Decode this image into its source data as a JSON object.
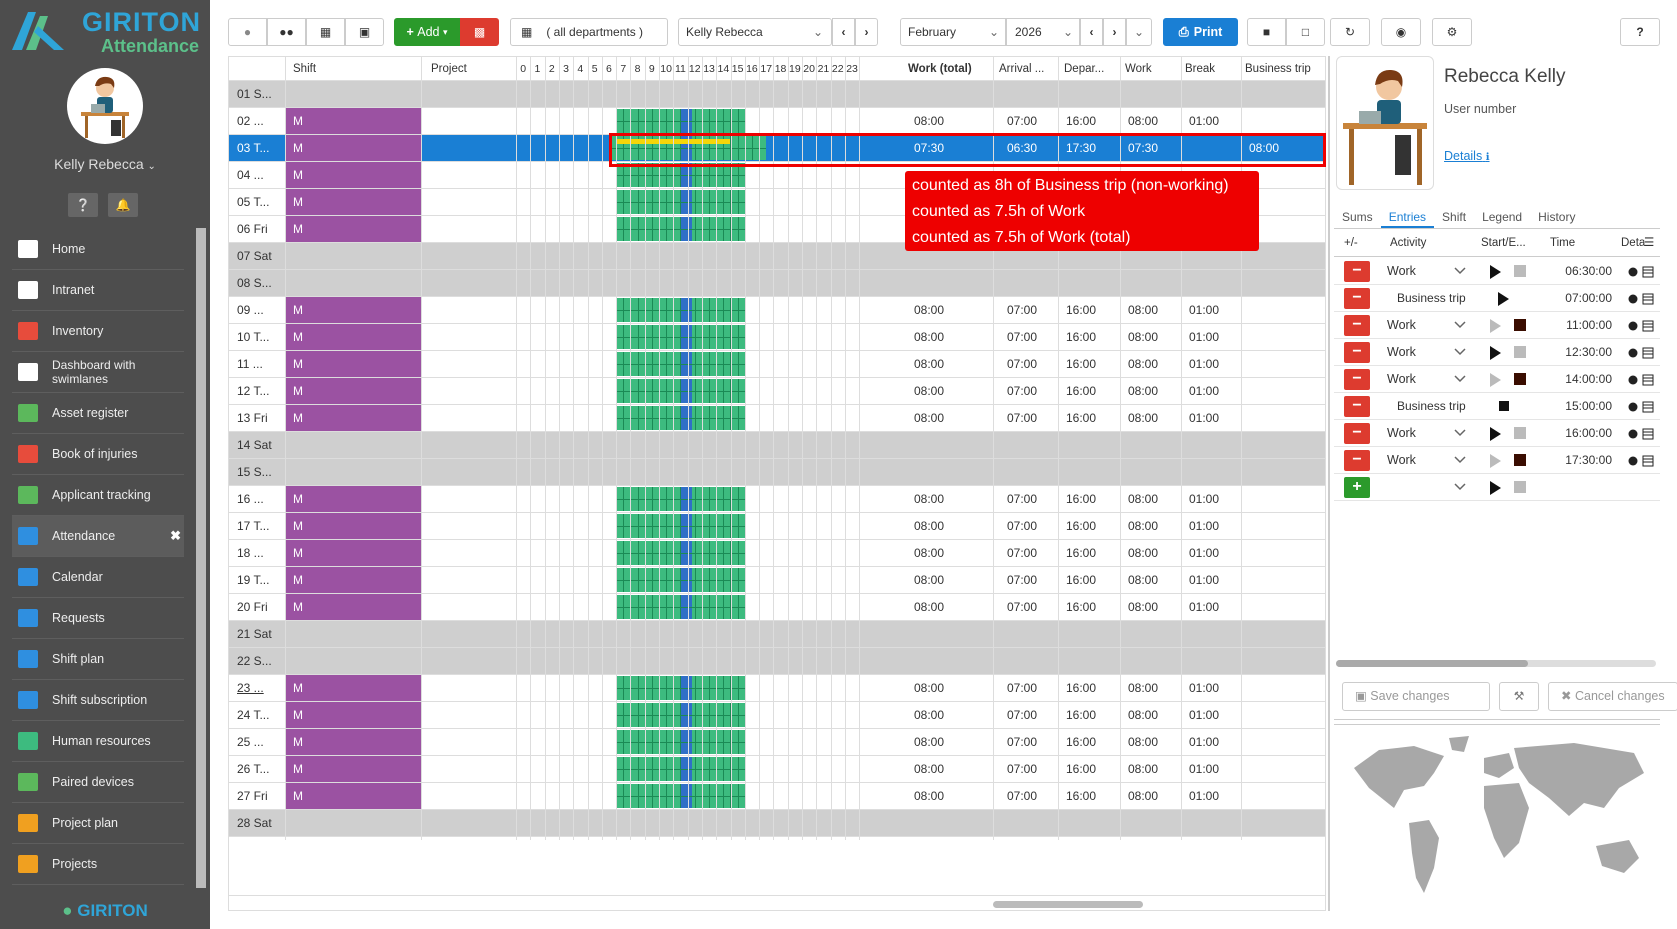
{
  "app": {
    "brand": "GIRITON",
    "product": "Attendance",
    "footer_brand": "GIRITON"
  },
  "user": {
    "name": "Kelly Rebecca"
  },
  "nav": [
    {
      "label": "Home",
      "icon": "home-icon"
    },
    {
      "label": "Intranet",
      "icon": "bank-icon"
    },
    {
      "label": "Inventory",
      "icon": "circle-icon"
    },
    {
      "label": "Dashboard with swimlanes",
      "icon": "swimlanes-icon"
    },
    {
      "label": "Asset register",
      "icon": "asset-icon"
    },
    {
      "label": "Book of injuries",
      "icon": "ambulance-icon"
    },
    {
      "label": "Applicant tracking",
      "icon": "user-plus-icon"
    },
    {
      "label": "Attendance",
      "icon": "user-icon",
      "active": true
    },
    {
      "label": "Calendar",
      "icon": "calendar-icon"
    },
    {
      "label": "Requests",
      "icon": "gavel-icon"
    },
    {
      "label": "Shift plan",
      "icon": "calendar-grid-icon"
    },
    {
      "label": "Shift subscription",
      "icon": "calendar-check-icon"
    },
    {
      "label": "Human resources",
      "icon": "person-icon"
    },
    {
      "label": "Paired devices",
      "icon": "mobile-icon"
    },
    {
      "label": "Project plan",
      "icon": "calendar-orange-icon"
    },
    {
      "label": "Projects",
      "icon": "calendar-orange-icon"
    }
  ],
  "toolbar": {
    "add_label": "Add",
    "department": "( all departments )",
    "employee": "Kelly Rebecca",
    "month": "February",
    "year": "2026",
    "print_label": "Print"
  },
  "grid": {
    "headers": {
      "shift": "Shift",
      "project": "Project",
      "work_total": "Work (total)",
      "arrival": "Arrival ...",
      "departure": "Depar...",
      "work": "Work",
      "break": "Break",
      "business_trip": "Business trip"
    },
    "hours": [
      "0",
      "1",
      "2",
      "3",
      "4",
      "5",
      "6",
      "7",
      "8",
      "9",
      "10",
      "11",
      "12",
      "13",
      "14",
      "15",
      "16",
      "17",
      "18",
      "19",
      "20",
      "21",
      "22",
      "23"
    ],
    "rows": [
      {
        "day": "01 S...",
        "weekend": true
      },
      {
        "day": "02 ...",
        "shift": "M",
        "work_total": "08:00",
        "arrival": "07:00",
        "departure": "16:00",
        "work": "08:00",
        "break": "01:00"
      },
      {
        "day": "03 T...",
        "shift": "M",
        "selected": true,
        "work_total": "07:30",
        "arrival": "06:30",
        "departure": "17:30",
        "work": "07:30",
        "business_trip": "08:00"
      },
      {
        "day": "04 ...",
        "shift": "M"
      },
      {
        "day": "05 T...",
        "shift": "M"
      },
      {
        "day": "06 Fri",
        "shift": "M"
      },
      {
        "day": "07 Sat",
        "weekend": true
      },
      {
        "day": "08 S...",
        "weekend": true
      },
      {
        "day": "09 ...",
        "shift": "M",
        "work_total": "08:00",
        "arrival": "07:00",
        "departure": "16:00",
        "work": "08:00",
        "break": "01:00"
      },
      {
        "day": "10 T...",
        "shift": "M",
        "work_total": "08:00",
        "arrival": "07:00",
        "departure": "16:00",
        "work": "08:00",
        "break": "01:00"
      },
      {
        "day": "11 ...",
        "shift": "M",
        "work_total": "08:00",
        "arrival": "07:00",
        "departure": "16:00",
        "work": "08:00",
        "break": "01:00"
      },
      {
        "day": "12 T...",
        "shift": "M",
        "work_total": "08:00",
        "arrival": "07:00",
        "departure": "16:00",
        "work": "08:00",
        "break": "01:00"
      },
      {
        "day": "13 Fri",
        "shift": "M",
        "work_total": "08:00",
        "arrival": "07:00",
        "departure": "16:00",
        "work": "08:00",
        "break": "01:00"
      },
      {
        "day": "14 Sat",
        "weekend": true
      },
      {
        "day": "15 S...",
        "weekend": true
      },
      {
        "day": "16 ...",
        "shift": "M",
        "work_total": "08:00",
        "arrival": "07:00",
        "departure": "16:00",
        "work": "08:00",
        "break": "01:00"
      },
      {
        "day": "17 T...",
        "shift": "M",
        "work_total": "08:00",
        "arrival": "07:00",
        "departure": "16:00",
        "work": "08:00",
        "break": "01:00"
      },
      {
        "day": "18 ...",
        "shift": "M",
        "work_total": "08:00",
        "arrival": "07:00",
        "departure": "16:00",
        "work": "08:00",
        "break": "01:00"
      },
      {
        "day": "19 T...",
        "shift": "M",
        "work_total": "08:00",
        "arrival": "07:00",
        "departure": "16:00",
        "work": "08:00",
        "break": "01:00"
      },
      {
        "day": "20 Fri",
        "shift": "M",
        "work_total": "08:00",
        "arrival": "07:00",
        "departure": "16:00",
        "work": "08:00",
        "break": "01:00"
      },
      {
        "day": "21 Sat",
        "weekend": true
      },
      {
        "day": "22 S...",
        "weekend": true
      },
      {
        "day": "23 ...",
        "shift": "M",
        "underline": true,
        "work_total": "08:00",
        "arrival": "07:00",
        "departure": "16:00",
        "work": "08:00",
        "break": "01:00"
      },
      {
        "day": "24 T...",
        "shift": "M",
        "work_total": "08:00",
        "arrival": "07:00",
        "departure": "16:00",
        "work": "08:00",
        "break": "01:00"
      },
      {
        "day": "25 ...",
        "shift": "M",
        "work_total": "08:00",
        "arrival": "07:00",
        "departure": "16:00",
        "work": "08:00",
        "break": "01:00"
      },
      {
        "day": "26 T...",
        "shift": "M",
        "work_total": "08:00",
        "arrival": "07:00",
        "departure": "16:00",
        "work": "08:00",
        "break": "01:00"
      },
      {
        "day": "27 Fri",
        "shift": "M",
        "work_total": "08:00",
        "arrival": "07:00",
        "departure": "16:00",
        "work": "08:00",
        "break": "01:00"
      },
      {
        "day": "28 Sat",
        "weekend": true
      }
    ]
  },
  "tooltip": [
    "counted as 8h of Business trip (non-working)",
    "counted as 7.5h of Work",
    "counted as 7.5h of Work (total)"
  ],
  "profile": {
    "name": "Rebecca Kelly",
    "user_number_label": "User number",
    "details_link": "Details"
  },
  "tabs": [
    "Sums",
    "Entries",
    "Shift",
    "Legend",
    "History"
  ],
  "entries_header": {
    "plusminus": "+/-",
    "activity": "Activity",
    "start_end": "Start/E...",
    "time": "Time",
    "details": "Deta"
  },
  "entries": [
    {
      "activity": "Work",
      "play": "on",
      "square": "gray",
      "time": "06:30:00"
    },
    {
      "activity": "Business trip",
      "play": "on",
      "square": "none",
      "time": "07:00:00"
    },
    {
      "activity": "Work",
      "play": "dim",
      "square": "dark",
      "time": "11:00:00"
    },
    {
      "activity": "Work",
      "play": "on",
      "square": "gray",
      "time": "12:30:00"
    },
    {
      "activity": "Work",
      "play": "dim",
      "square": "dark",
      "time": "14:00:00"
    },
    {
      "activity": "Business trip",
      "play": "none",
      "square": "black",
      "time": "15:00:00"
    },
    {
      "activity": "Work",
      "play": "on",
      "square": "gray",
      "time": "16:00:00"
    },
    {
      "activity": "Work",
      "play": "dim",
      "square": "dark",
      "time": "17:30:00"
    }
  ],
  "actions": {
    "save": "Save changes",
    "cancel": "Cancel changes"
  }
}
